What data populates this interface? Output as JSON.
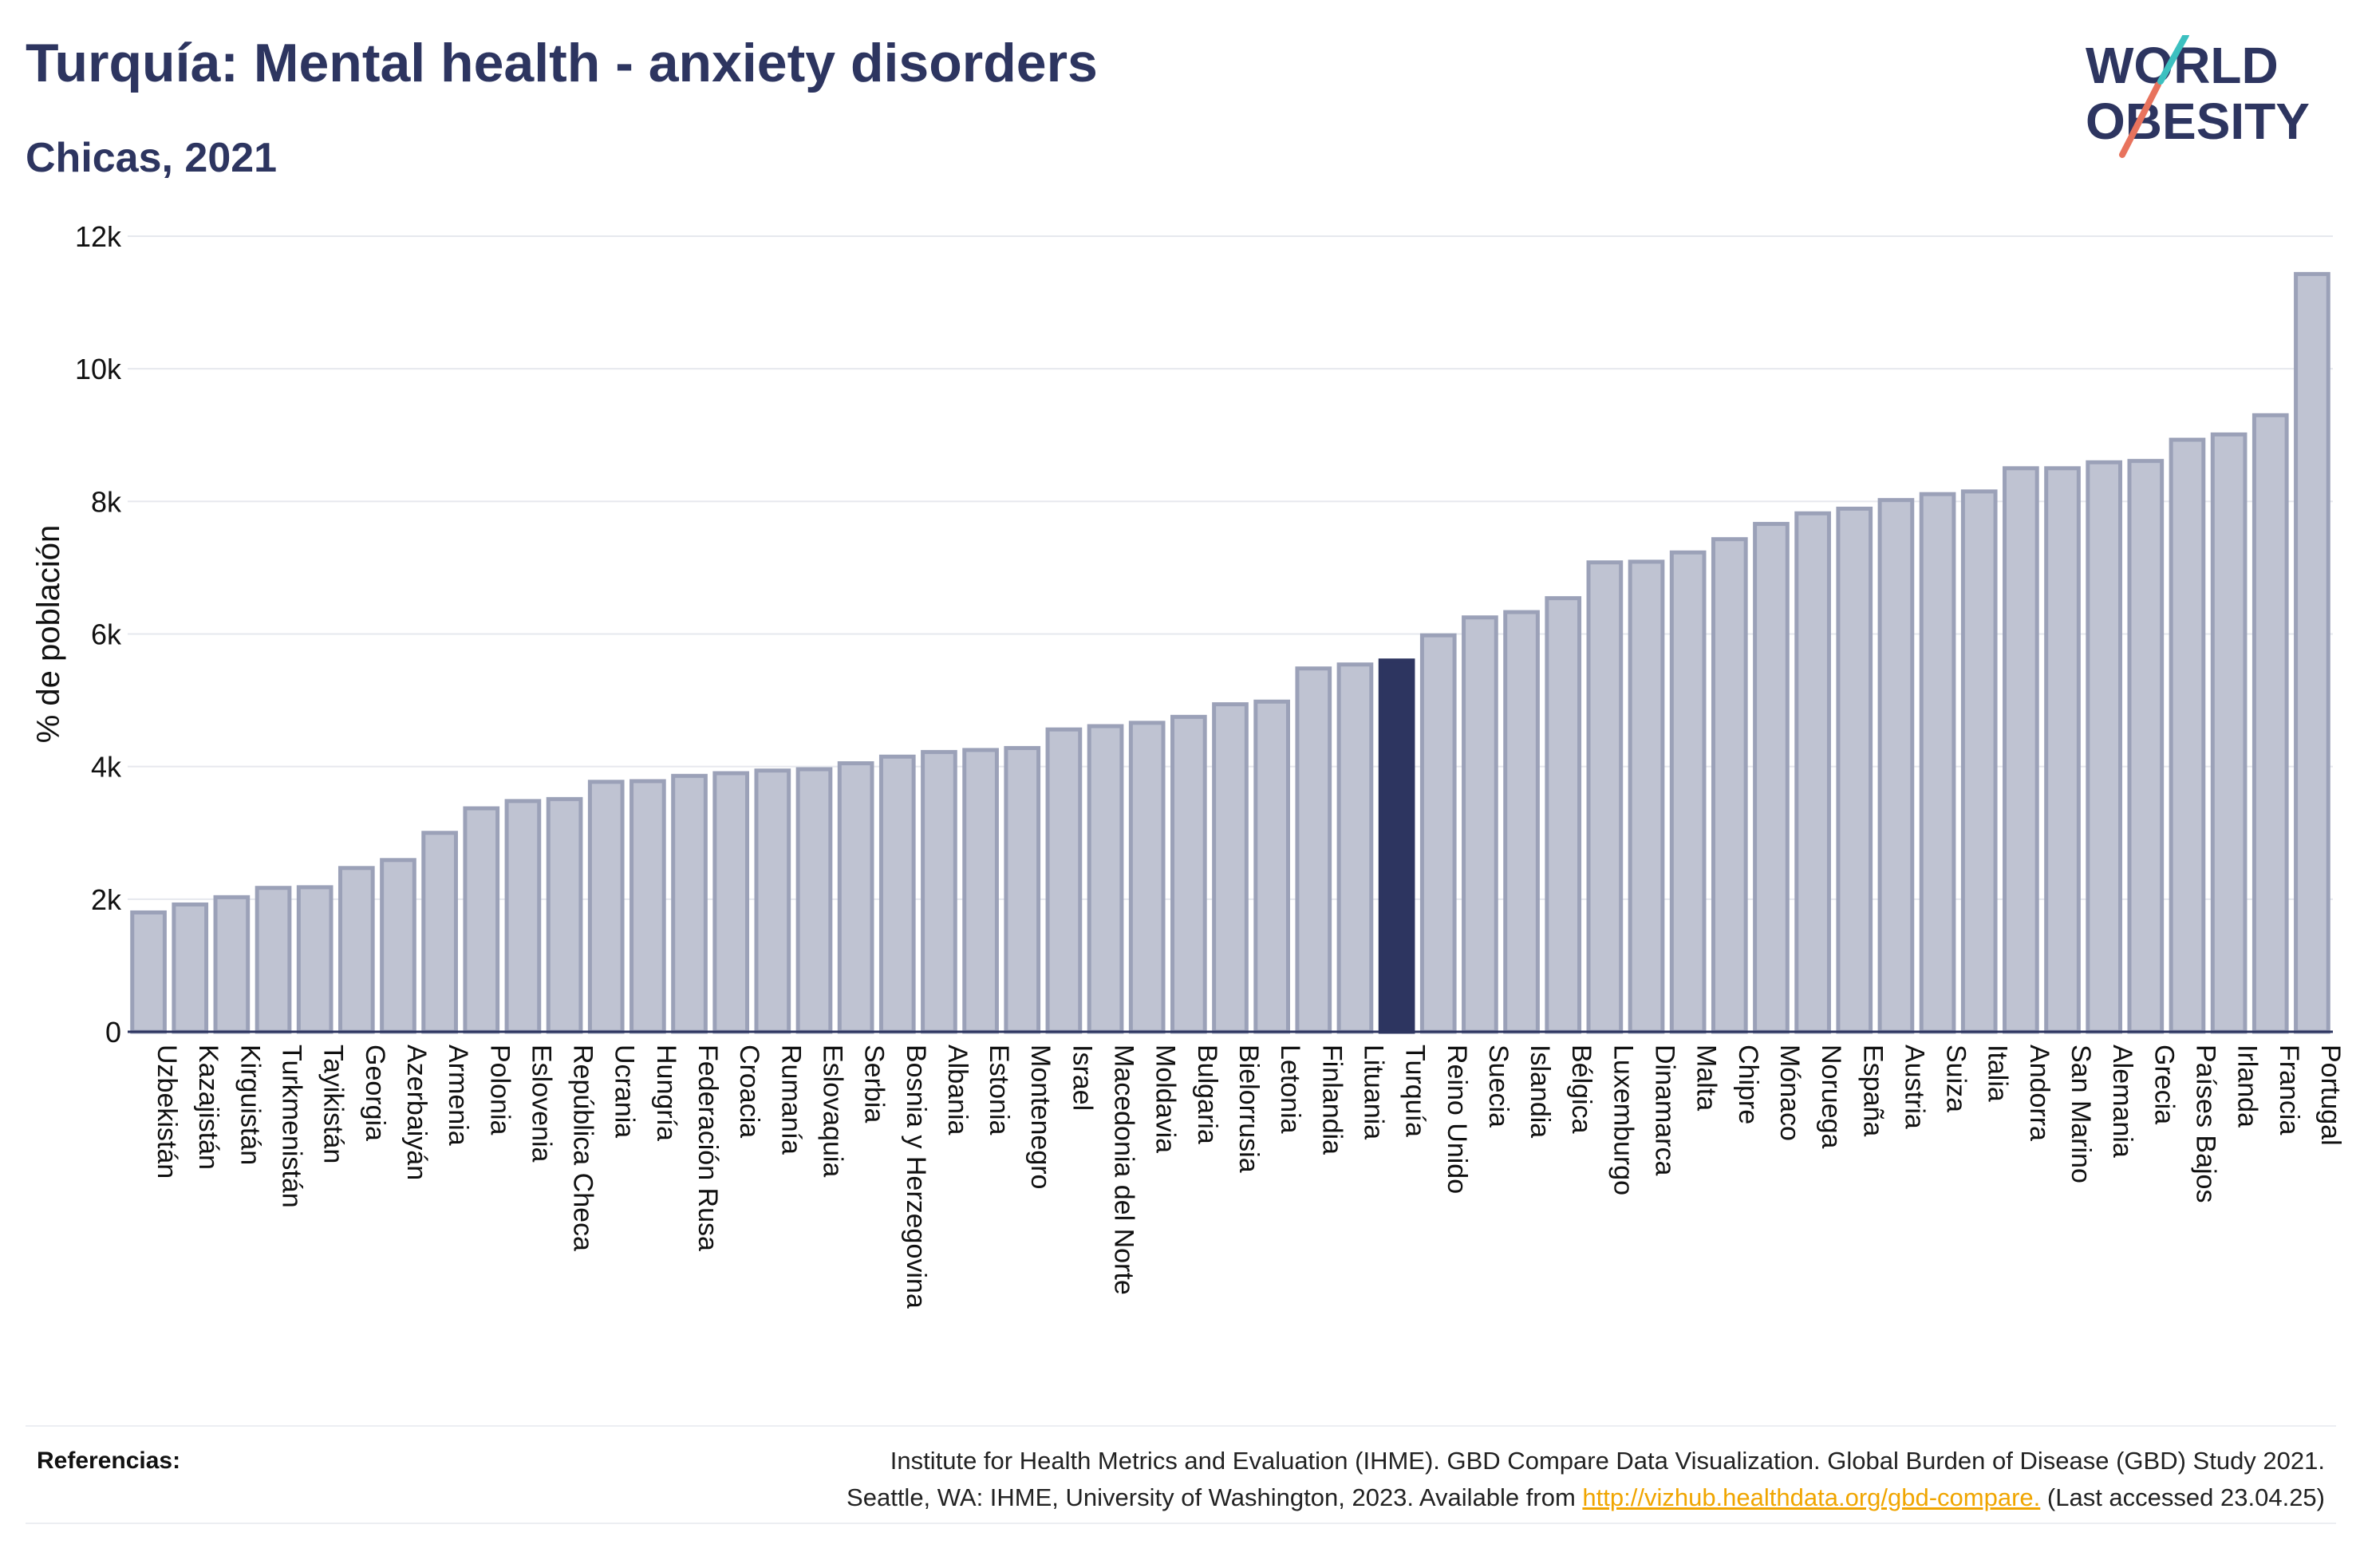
{
  "header": {
    "title": "Turquía: Mental health - anxiety disorders",
    "subtitle": "Chicas, 2021"
  },
  "logo": {
    "line1": "WORLD",
    "line2": "OBESITY"
  },
  "colors": {
    "bar": "#bfc3d2",
    "bar_stroke": "#9ba1b8",
    "highlight": "#2d3560",
    "text": "#2d3560",
    "grid": "#e6e8ee"
  },
  "chart_data": {
    "type": "bar",
    "ylabel": "% de población",
    "ylim": [
      0,
      12000
    ],
    "yticks": [
      0,
      2000,
      4000,
      6000,
      8000,
      10000,
      12000
    ],
    "ytick_labels": [
      "0",
      "2k",
      "4k",
      "6k",
      "8k",
      "10k",
      "12k"
    ],
    "grid": true,
    "highlight": "Turquía",
    "categories": [
      "Uzbekistán",
      "Kazajistán",
      "Kirguistán",
      "Turkmenistán",
      "Tayikistán",
      "Georgia",
      "Azerbaiyán",
      "Armenia",
      "Polonia",
      "Eslovenia",
      "República Checa",
      "Ucrania",
      "Hungría",
      "Federación Rusa",
      "Croacia",
      "Rumanía",
      "Eslovaquia",
      "Serbia",
      "Bosnia y Herzegovina",
      "Albania",
      "Estonia",
      "Montenegro",
      "Israel",
      "Macedonia del Norte",
      "Moldavia",
      "Bulgaria",
      "Bielorrusia",
      "Letonia",
      "Finlandia",
      "Lituania",
      "Turquía",
      "Reino Unido",
      "Suecia",
      "Islandia",
      "Bélgica",
      "Luxemburgo",
      "Dinamarca",
      "Malta",
      "Chipre",
      "Mónaco",
      "Noruega",
      "España",
      "Austria",
      "Suiza",
      "Italia",
      "Andorra",
      "San Marino",
      "Alemania",
      "Grecia",
      "Países Bajos",
      "Irlanda",
      "Francia",
      "Portugal"
    ],
    "values": [
      1800,
      1920,
      2030,
      2170,
      2180,
      2470,
      2590,
      3000,
      3370,
      3480,
      3510,
      3770,
      3780,
      3860,
      3900,
      3940,
      3960,
      4050,
      4150,
      4220,
      4250,
      4280,
      4560,
      4610,
      4660,
      4750,
      4940,
      4980,
      5480,
      5540,
      5600,
      5980,
      6250,
      6330,
      6540,
      7080,
      7090,
      7230,
      7430,
      7660,
      7820,
      7890,
      8020,
      8110,
      8150,
      8500,
      8500,
      8590,
      8610,
      8930,
      9010,
      9300,
      11430
    ]
  },
  "references": {
    "label": "Referencias:",
    "line1": "Institute for Health Metrics and Evaluation (IHME). GBD Compare Data Visualization. Global Burden of Disease (GBD) Study 2021.",
    "line2_pre": "Seattle, WA: IHME, University of Washington, 2023. Available from ",
    "link": "http://vizhub.healthdata.org/gbd-compare.",
    "line2_post": " (Last accessed 23.04.25)"
  }
}
